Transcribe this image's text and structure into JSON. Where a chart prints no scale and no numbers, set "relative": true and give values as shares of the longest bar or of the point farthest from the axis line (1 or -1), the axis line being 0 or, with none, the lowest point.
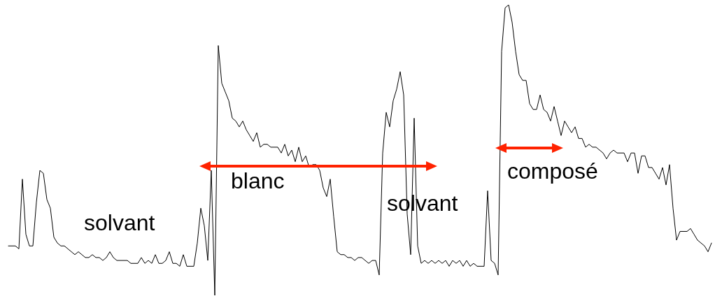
{
  "chart_data": {
    "type": "line",
    "relative": true,
    "marker": "none",
    "categories": [
      null,
      null,
      null,
      null,
      null,
      null,
      null,
      null,
      null,
      null,
      null,
      null,
      null,
      null,
      null,
      null,
      null,
      null,
      null,
      null,
      null,
      null,
      null,
      null,
      null,
      null,
      null,
      null,
      null,
      null,
      null,
      null,
      null,
      null,
      null,
      null,
      null,
      null,
      null,
      null,
      null,
      null,
      null,
      null,
      null,
      null,
      null,
      null,
      null,
      null,
      null,
      null,
      null,
      null,
      null,
      null,
      null,
      null,
      null,
      null,
      null,
      null,
      null,
      null,
      null,
      null,
      null,
      null,
      null,
      null,
      null,
      null,
      null,
      null,
      null,
      null,
      null,
      null,
      null,
      null,
      null,
      null,
      null,
      null,
      null,
      null,
      null,
      null,
      null,
      null,
      null,
      null,
      null,
      null,
      null,
      null,
      null,
      null,
      null,
      null,
      null,
      null,
      null,
      null,
      null,
      null,
      null,
      null,
      null,
      null,
      null,
      null,
      null,
      null,
      null,
      null,
      null,
      null,
      null,
      null,
      null,
      null,
      null,
      null,
      null,
      null,
      null,
      null,
      null,
      null,
      null,
      null,
      null,
      null,
      null,
      null,
      null,
      null,
      null,
      null,
      null,
      null,
      null,
      null,
      null,
      null,
      null,
      null,
      null,
      null,
      null,
      null,
      null,
      null,
      null,
      null,
      null,
      null,
      null,
      null,
      null,
      null,
      null,
      null,
      null,
      null,
      null,
      null,
      null,
      null,
      null,
      null,
      null,
      null,
      null,
      null,
      null,
      null,
      null,
      null,
      null,
      null,
      null,
      null,
      null,
      null,
      null,
      null,
      null,
      null,
      null,
      null,
      null,
      null,
      null,
      null,
      null,
      null,
      null,
      null,
      null,
      null
    ],
    "series": [
      {
        "color": "#000000",
        "values": [
          0.17,
          0.17,
          0.17,
          0.16,
          0.4,
          0.21,
          0.17,
          0.17,
          0.32,
          0.43,
          0.42,
          0.33,
          0.3,
          0.2,
          0.18,
          0.17,
          0.17,
          0.16,
          0.15,
          0.14,
          0.15,
          0.14,
          0.13,
          0.13,
          0.14,
          0.13,
          0.13,
          0.12,
          0.13,
          0.15,
          0.13,
          0.12,
          0.12,
          0.12,
          0.12,
          0.11,
          0.11,
          0.11,
          0.13,
          0.11,
          0.12,
          0.11,
          0.14,
          0.11,
          0.11,
          0.12,
          0.15,
          0.11,
          0.11,
          0.1,
          0.14,
          0.1,
          0.1,
          0.1,
          0.18,
          0.3,
          0.24,
          0.12,
          0.43,
          0,
          0.86,
          0.73,
          0.7,
          0.67,
          0.61,
          0.6,
          0.58,
          0.6,
          0.57,
          0.55,
          0.53,
          0.56,
          0.51,
          0.52,
          0.52,
          0.51,
          0.51,
          0.51,
          0.49,
          0.52,
          0.48,
          0.5,
          0.46,
          0.51,
          0.46,
          0.48,
          0.44,
          0.45,
          0.45,
          0.43,
          0.37,
          0.34,
          0.4,
          0.27,
          0.15,
          0.14,
          0.14,
          0.13,
          0.13,
          0.12,
          0.13,
          0.13,
          0.12,
          0.11,
          0.12,
          0.12,
          0.07,
          0.49,
          0.63,
          0.58,
          0.67,
          0.71,
          0.77,
          0.69,
          0.28,
          0.14,
          0.61,
          0.17,
          0.11,
          0.12,
          0.11,
          0.12,
          0.11,
          0.12,
          0.11,
          0.12,
          0.1,
          0.12,
          0.11,
          0.12,
          0.1,
          0.12,
          0.1,
          0.11,
          0.1,
          0.1,
          0.1,
          0.36,
          0.12,
          0.11,
          0.07,
          0.84,
          0.99,
          1,
          0.94,
          0.84,
          0.76,
          0.74,
          0.74,
          0.66,
          0.64,
          0.64,
          0.69,
          0.64,
          0.63,
          0.6,
          0.65,
          0.6,
          0.55,
          0.6,
          0.58,
          0.56,
          0.58,
          0.54,
          0.54,
          0.51,
          0.52,
          0.51,
          0.51,
          0.5,
          0.49,
          0.47,
          0.49,
          0.5,
          0.49,
          0.49,
          0.49,
          0.46,
          0.49,
          0.49,
          0.42,
          0.48,
          0.48,
          0.44,
          0.44,
          0.42,
          0.4,
          0.44,
          0.38,
          0.45,
          0.3,
          0.19,
          0.22,
          0.22,
          0.22,
          0.23,
          0.21,
          0.19,
          0.18,
          0.17,
          0.15,
          0.18
        ]
      }
    ],
    "annotations": [
      "solvant",
      "blanc",
      "solvant",
      "composé"
    ]
  }
}
